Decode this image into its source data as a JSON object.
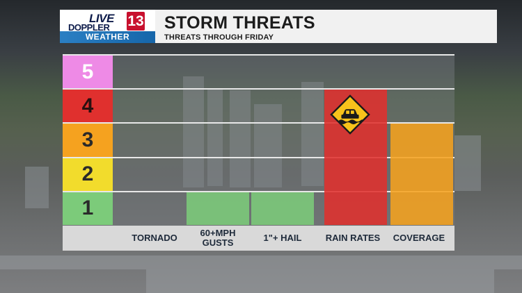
{
  "header": {
    "logo": {
      "top": "LIVE",
      "middle": "DOPPLER",
      "number": "13",
      "bottom": "WEATHER"
    },
    "title": "STORM THREATS",
    "subtitle": "THREATS THROUGH FRIDAY"
  },
  "chart_data": {
    "type": "bar",
    "categories": [
      "TORNADO",
      "60+MPH GUSTS",
      "1\"+ HAIL",
      "RAIN RATES",
      "COVERAGE"
    ],
    "values": [
      0,
      1,
      1,
      4,
      3
    ],
    "ylim": [
      0,
      5
    ],
    "levels": [
      "1",
      "2",
      "3",
      "4",
      "5"
    ],
    "level_colors": [
      "#7ccb7a",
      "#f2dc2c",
      "#f5a21f",
      "#e0302e",
      "#ee8ae6"
    ],
    "bar_colors": [
      "#7ccb7a",
      "#7ccb7a",
      "#7ccb7a",
      "#e0302e",
      "#f5a21f"
    ],
    "annotation_icon": "flood-car-warning-icon"
  },
  "colors": {
    "accent": "#1666aa",
    "brand_red": "#c8102e"
  }
}
